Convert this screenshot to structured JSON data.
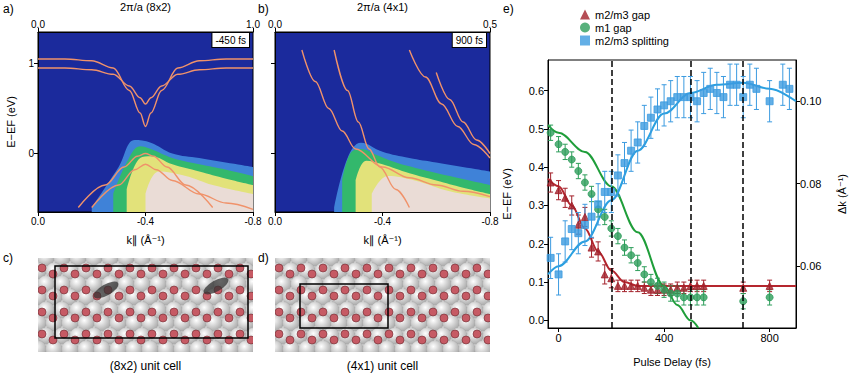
{
  "chart_data": [
    {
      "panel": "a)",
      "type": "line",
      "annotation": "-450 fs",
      "x2label": "2π/a (8x2)",
      "xlabel": "k∥ (Å⁻¹)",
      "ylabel": "E−EF (eV)",
      "xlim": [
        0,
        -0.8
      ],
      "xticks": [
        {
          "value": 0,
          "label": "0.0"
        },
        -0.4,
        -0.8
      ],
      "x2lim": [
        0,
        1
      ],
      "x2ticks": [
        {
          "value": 0,
          "label": "0.0"
        },
        {
          "value": 1,
          "label": "1.0"
        }
      ],
      "ylim": [
        -0.65,
        1.35
      ],
      "yticks": [
        0,
        1
      ],
      "series": [
        {
          "type": "area",
          "color": "#3f82d8",
          "x": [
            -0.2,
            -0.3,
            -0.36,
            -0.42,
            -0.5,
            -0.6,
            -0.8
          ],
          "values": [
            -0.6,
            -0.15,
            0.15,
            0.12,
            0.0,
            -0.05,
            -0.15
          ]
        },
        {
          "type": "area",
          "color": "#33b86c",
          "x": [
            -0.28,
            -0.33,
            -0.38,
            -0.42,
            -0.5,
            -0.6,
            -0.7,
            -0.8
          ],
          "values": [
            -0.45,
            -0.1,
            0.08,
            0.05,
            -0.05,
            -0.12,
            -0.18,
            -0.25
          ]
        },
        {
          "type": "area",
          "color": "#e2e27a",
          "x": [
            -0.33,
            -0.38,
            -0.42,
            -0.5,
            -0.6,
            -0.7,
            -0.8
          ],
          "values": [
            -0.4,
            -0.05,
            -0.03,
            -0.12,
            -0.2,
            -0.28,
            -0.35
          ]
        },
        {
          "type": "area",
          "color": "#eadcd6",
          "x": [
            -0.4,
            -0.45,
            -0.55,
            -0.65,
            -0.8
          ],
          "values": [
            -0.45,
            -0.2,
            -0.25,
            -0.35,
            -0.45
          ]
        },
        {
          "color": "#f0926a",
          "x": [
            0,
            -0.1,
            -0.2,
            -0.28,
            -0.34,
            -0.38,
            -0.4,
            -0.42,
            -0.46,
            -0.52,
            -0.6,
            -0.7,
            -0.8
          ],
          "values": [
            1.05,
            1.05,
            1.03,
            0.95,
            0.7,
            0.45,
            0.3,
            0.45,
            0.7,
            0.95,
            1.03,
            1.05,
            1.05
          ]
        },
        {
          "color": "#f0926a",
          "x": [
            0,
            -0.1,
            -0.2,
            -0.28,
            -0.34,
            -0.38,
            -0.4,
            -0.42,
            -0.46,
            -0.52,
            -0.6,
            -0.7,
            -0.8
          ],
          "values": [
            0.95,
            0.95,
            0.93,
            0.88,
            0.75,
            0.62,
            0.55,
            0.62,
            0.75,
            0.88,
            0.93,
            0.95,
            0.95
          ]
        },
        {
          "color": "#f0926a",
          "x": [
            -0.15,
            -0.25,
            -0.32,
            -0.37,
            -0.4,
            -0.43,
            -0.48,
            -0.55,
            -0.65
          ],
          "values": [
            -0.6,
            -0.35,
            -0.15,
            -0.03,
            0.0,
            -0.03,
            -0.15,
            -0.35,
            -0.6
          ]
        },
        {
          "color": "#f0926a",
          "x": [
            -0.2,
            -0.3,
            -0.36,
            -0.4,
            -0.44,
            -0.5,
            -0.6,
            -0.7,
            -0.8
          ],
          "values": [
            -0.6,
            -0.35,
            -0.18,
            -0.12,
            -0.18,
            -0.3,
            -0.45,
            -0.55,
            -0.62
          ]
        }
      ]
    },
    {
      "panel": "b)",
      "type": "line",
      "annotation": "900 fs",
      "tick_labels": "x",
      "x2label": "2π/a (4x1)",
      "xlabel": "k∥ (Å⁻¹)",
      "xlim": [
        0,
        -0.8
      ],
      "xticks": [
        {
          "value": 0,
          "label": "0.0"
        },
        -0.4,
        -0.8
      ],
      "x2lim": [
        0,
        0.5
      ],
      "x2ticks": [
        {
          "value": 0,
          "label": "0.0"
        },
        0.5
      ],
      "ylim": [
        -0.65,
        1.35
      ],
      "yticks": [
        0,
        1
      ],
      "series": [
        {
          "type": "area",
          "color": "#3f82d8",
          "x": [
            -0.22,
            -0.27,
            -0.32,
            -0.4,
            -0.5,
            -0.6,
            -0.8
          ],
          "values": [
            -0.6,
            -0.05,
            0.12,
            0.02,
            -0.05,
            -0.1,
            -0.2
          ]
        },
        {
          "type": "area",
          "color": "#33b86c",
          "x": [
            -0.25,
            -0.28,
            -0.32,
            -0.38,
            -0.45,
            -0.55,
            -0.65,
            -0.8
          ],
          "values": [
            -0.3,
            0.0,
            0.05,
            -0.02,
            -0.1,
            -0.18,
            -0.25,
            -0.35
          ]
        },
        {
          "type": "area",
          "color": "#e2e27a",
          "x": [
            -0.3,
            -0.34,
            -0.4,
            -0.5,
            -0.6,
            -0.7,
            -0.8
          ],
          "values": [
            -0.3,
            -0.08,
            -0.12,
            -0.22,
            -0.3,
            -0.38,
            -0.45
          ]
        },
        {
          "type": "area",
          "color": "#eadcd6",
          "x": [
            -0.36,
            -0.42,
            -0.52,
            -0.65,
            -0.8
          ],
          "values": [
            -0.45,
            -0.25,
            -0.3,
            -0.42,
            -0.5
          ]
        },
        {
          "color": "#f0926a",
          "x": [
            -0.1,
            -0.15,
            -0.2,
            -0.25,
            -0.3,
            -0.4,
            -0.5,
            -0.6,
            -0.7,
            -0.8
          ],
          "values": [
            1.15,
            0.8,
            0.5,
            0.25,
            0.05,
            -0.15,
            -0.27,
            -0.35,
            -0.42,
            -0.48
          ]
        },
        {
          "color": "#f0926a",
          "x": [
            -0.22,
            -0.27,
            -0.31,
            -0.35,
            -0.39,
            -0.45,
            -0.5
          ],
          "values": [
            1.15,
            0.7,
            0.35,
            0.05,
            -0.15,
            -0.4,
            -0.6
          ]
        },
        {
          "color": "#f0926a",
          "x": [
            -0.5,
            -0.56,
            -0.62,
            -0.68,
            -0.74,
            -0.8
          ],
          "values": [
            1.15,
            0.85,
            0.55,
            0.3,
            0.1,
            -0.05
          ]
        },
        {
          "color": "#f0926a",
          "x": [
            -0.6,
            -0.65,
            -0.7,
            -0.75,
            -0.8
          ],
          "values": [
            0.9,
            0.6,
            0.35,
            0.15,
            0.0
          ]
        }
      ]
    },
    {
      "panel": "e)",
      "type": "scatter",
      "legend": "top",
      "xlabel": "Pulse Delay (fs)",
      "ylabel": "E−EF (eV)",
      "y2label": "Δk (Å⁻¹)",
      "xlim": [
        -40,
        900
      ],
      "xticks": [
        0,
        400,
        800
      ],
      "ylim": [
        -0.02,
        0.68
      ],
      "yticks": [
        {
          "value": 0,
          "label": "0.0"
        },
        0.1,
        0.2,
        0.3,
        0.4,
        0.5,
        0.6
      ],
      "y2lim": [
        0.045,
        0.11
      ],
      "y2ticks": [
        0.06,
        0.08,
        {
          "value": 0.1,
          "label": "0.10"
        }
      ],
      "vlines": [
        200,
        500,
        700
      ],
      "series": [
        {
          "name": "m2/m3 gap",
          "color": "#a3202a",
          "marker": "triangle",
          "x": [
            -30,
            0,
            25,
            50,
            75,
            100,
            125,
            150,
            175,
            200,
            225,
            250,
            275,
            300,
            325,
            350,
            375,
            400,
            425,
            450,
            475,
            500,
            525,
            550,
            700,
            800
          ],
          "values": [
            0.36,
            0.34,
            0.32,
            0.3,
            0.25,
            0.27,
            0.19,
            0.18,
            0.12,
            0.11,
            0.09,
            0.09,
            0.09,
            0.09,
            0.085,
            0.08,
            0.08,
            0.08,
            0.08,
            0.085,
            0.085,
            0.09,
            0.09,
            0.09,
            0.085,
            0.09
          ],
          "errors": [
            0.025,
            0.025,
            0.025,
            0.025,
            0.025,
            0.025,
            0.025,
            0.025,
            0.025,
            0.025,
            0.015,
            0.015,
            0.015,
            0.015,
            0.015,
            0.015,
            0.015,
            0.015,
            0.015,
            0.015,
            0.015,
            0.015,
            0.015,
            0.015,
            0.015,
            0.015
          ]
        },
        {
          "name": "m1 gap",
          "color": "#2e9e5b",
          "marker": "circle",
          "x": [
            -30,
            0,
            25,
            50,
            75,
            100,
            125,
            150,
            175,
            200,
            225,
            250,
            275,
            300,
            325,
            350,
            375,
            400,
            425,
            450,
            475,
            500,
            525,
            550,
            700,
            800
          ],
          "values": [
            0.49,
            0.46,
            0.44,
            0.42,
            0.39,
            0.36,
            0.33,
            0.29,
            0.27,
            0.24,
            0.22,
            0.19,
            0.17,
            0.15,
            0.12,
            0.1,
            0.09,
            0.08,
            0.07,
            0.07,
            0.06,
            0.06,
            0.06,
            0.06,
            0.05,
            0.06
          ],
          "errors": [
            0.02,
            0.02,
            0.02,
            0.02,
            0.02,
            0.02,
            0.02,
            0.02,
            0.02,
            0.02,
            0.02,
            0.02,
            0.02,
            0.02,
            0.02,
            0.02,
            0.02,
            0.02,
            0.02,
            0.02,
            0.02,
            0.02,
            0.02,
            0.02,
            0.02,
            0.02
          ]
        },
        {
          "name": "m2/m3 splitting",
          "color": "#3c9be0",
          "marker": "square",
          "axis": "y2",
          "x": [
            -30,
            0,
            25,
            50,
            75,
            100,
            125,
            150,
            175,
            200,
            225,
            250,
            275,
            300,
            325,
            350,
            375,
            400,
            425,
            450,
            475,
            500,
            525,
            550,
            575,
            600,
            625,
            650,
            675,
            700,
            725,
            750,
            800,
            850,
            875
          ],
          "values": [
            0.062,
            0.058,
            0.066,
            0.069,
            0.068,
            0.07,
            0.072,
            0.075,
            0.078,
            0.078,
            0.082,
            0.085,
            0.088,
            0.09,
            0.094,
            0.096,
            0.098,
            0.099,
            0.1,
            0.101,
            0.101,
            0.101,
            0.1,
            0.102,
            0.103,
            0.102,
            0.101,
            0.104,
            0.104,
            0.101,
            0.104,
            0.103,
            0.1,
            0.104,
            0.103
          ],
          "errors": [
            0.005,
            0.005,
            0.005,
            0.005,
            0.005,
            0.005,
            0.005,
            0.005,
            0.005,
            0.005,
            0.005,
            0.005,
            0.005,
            0.005,
            0.005,
            0.005,
            0.005,
            0.005,
            0.005,
            0.005,
            0.005,
            0.005,
            0.005,
            0.005,
            0.005,
            0.005,
            0.005,
            0.005,
            0.005,
            0.005,
            0.005,
            0.005,
            0.005,
            0.005,
            0.005
          ]
        },
        {
          "type": "line",
          "color": "#b5262e",
          "x": [
            -40,
            0,
            50,
            100,
            150,
            200,
            250,
            300,
            400,
            500,
            600,
            700,
            800,
            900
          ],
          "values": [
            0.37,
            0.35,
            0.3,
            0.24,
            0.18,
            0.13,
            0.1,
            0.09,
            0.09,
            0.09,
            0.09,
            0.09,
            0.09,
            0.09
          ]
        },
        {
          "type": "line",
          "color": "#1f9e3a",
          "x": [
            -40,
            0,
            100,
            200,
            300,
            400,
            450,
            500,
            530
          ],
          "values": [
            0.51,
            0.49,
            0.44,
            0.35,
            0.23,
            0.09,
            0.04,
            0.0,
            -0.02
          ]
        },
        {
          "type": "line",
          "color": "#2aa0e0",
          "axis": "y2",
          "x": [
            -40,
            0,
            100,
            200,
            300,
            400,
            500,
            600,
            700,
            800,
            900
          ],
          "values": [
            0.058,
            0.06,
            0.066,
            0.076,
            0.088,
            0.097,
            0.102,
            0.104,
            0.1045,
            0.103,
            0.1
          ]
        }
      ]
    }
  ],
  "structures": [
    {
      "panel": "c)",
      "caption": "(8x2) unit cell"
    },
    {
      "panel": "d)",
      "caption": "(4x1) unit cell"
    }
  ]
}
